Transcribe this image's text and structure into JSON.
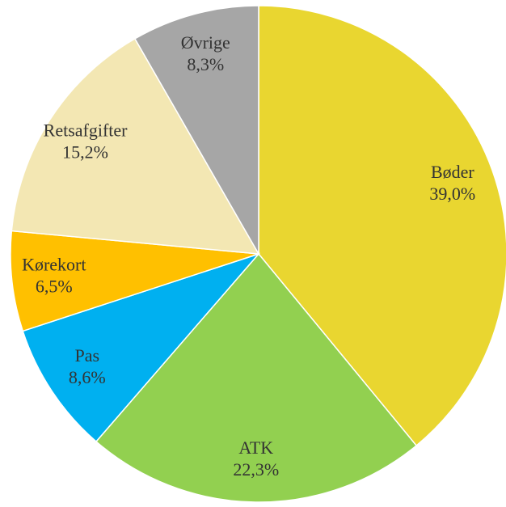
{
  "chart_data": {
    "type": "pie",
    "categories": [
      "Bøder",
      "ATK",
      "Pas",
      "Kørekort",
      "Retsafgifter",
      "Øvrige"
    ],
    "values": [
      39.0,
      22.3,
      8.6,
      6.5,
      15.2,
      8.3
    ],
    "value_labels": [
      "39,0%",
      "22,3%",
      "8,6%",
      "6,5%",
      "15,2%",
      "8,3%"
    ],
    "colors": [
      "#e9d630",
      "#92d050",
      "#00b0f0",
      "#ffc000",
      "#f3e7b3",
      "#a6a6a6"
    ]
  }
}
